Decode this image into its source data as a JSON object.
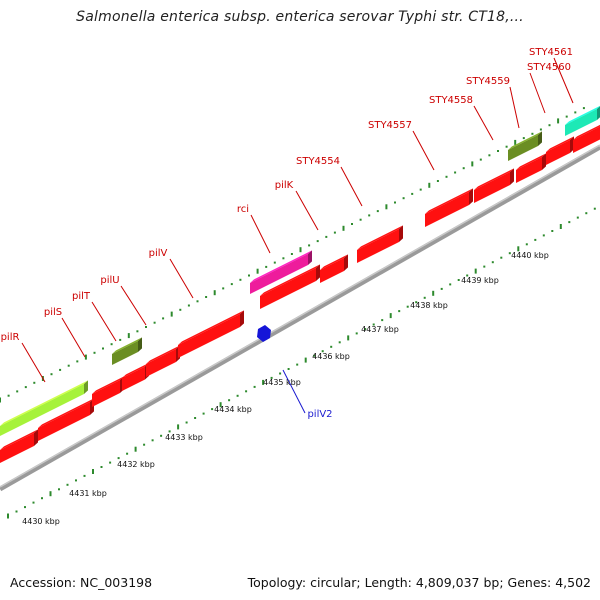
{
  "header": {
    "title": "Salmonella enterica subsp. enterica serovar Typhi str. CT18,..."
  },
  "footer": {
    "accession": "Accession: NC_003198",
    "summary": "Topology: circular; Length: 4,809,037 bp; Genes: 4,502"
  },
  "colors": {
    "gene_red": "#ff1010",
    "rci_pink": "#ee1c9c",
    "olive": "#6b8e23",
    "lime": "#a6f23a",
    "teal": "#1de9b6",
    "blue": "#1515d8",
    "backbone": "#9a9a9a",
    "tick_green": "#2d8a2d",
    "label_red": "#cc0000",
    "label_blue": "#1a1ad0"
  },
  "scale": {
    "ticks": [
      {
        "label": "4430 kbp"
      },
      {
        "label": "4431 kbp"
      },
      {
        "label": "4432 kbp"
      },
      {
        "label": "4433 kbp"
      },
      {
        "label": "4434 kbp"
      },
      {
        "label": "4435 kbp"
      },
      {
        "label": "4436 kbp"
      },
      {
        "label": "4437 kbp"
      },
      {
        "label": "4438 kbp"
      },
      {
        "label": "4439 kbp"
      },
      {
        "label": "4440 kbp"
      }
    ]
  },
  "gene_labels": [
    {
      "name": "pilR",
      "color": "label_red"
    },
    {
      "name": "pilS",
      "color": "label_red"
    },
    {
      "name": "pilT",
      "color": "label_red"
    },
    {
      "name": "pilU",
      "color": "label_red"
    },
    {
      "name": "pilV",
      "color": "label_red"
    },
    {
      "name": "rci",
      "color": "label_red"
    },
    {
      "name": "pilK",
      "color": "label_red"
    },
    {
      "name": "STY4554",
      "color": "label_red"
    },
    {
      "name": "STY4557",
      "color": "label_red"
    },
    {
      "name": "STY4558",
      "color": "label_red"
    },
    {
      "name": "STY4559",
      "color": "label_red"
    },
    {
      "name": "STY4560",
      "color": "label_red"
    },
    {
      "name": "STY4561",
      "color": "label_red"
    },
    {
      "name": "pilV2",
      "color": "label_blue"
    }
  ]
}
